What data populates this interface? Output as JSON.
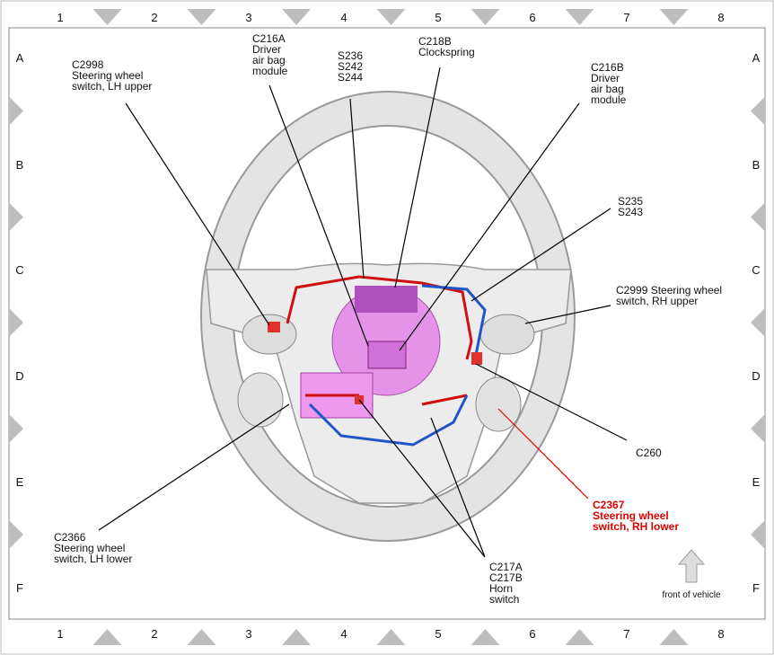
{
  "grid": {
    "columns": [
      "1",
      "2",
      "3",
      "4",
      "5",
      "6",
      "7",
      "8"
    ],
    "rows": [
      "A",
      "B",
      "C",
      "D",
      "E",
      "F"
    ]
  },
  "labels": [
    {
      "id": "c2998",
      "lines": [
        "C2998",
        "Steering wheel",
        "switch, LH upper"
      ]
    },
    {
      "id": "c216a",
      "lines": [
        "C216A",
        "Driver",
        "air bag",
        "module"
      ]
    },
    {
      "id": "s236",
      "lines": [
        "S236",
        "S242",
        "S244"
      ]
    },
    {
      "id": "c218b",
      "lines": [
        "C218B",
        "Clockspring"
      ]
    },
    {
      "id": "c216b",
      "lines": [
        "C216B",
        "Driver",
        "air bag",
        "module"
      ]
    },
    {
      "id": "s235",
      "lines": [
        "S235",
        "S243"
      ]
    },
    {
      "id": "c2999",
      "lines": [
        "C2999 Steering wheel",
        "switch, RH upper"
      ]
    },
    {
      "id": "c260",
      "lines": [
        "C260"
      ]
    },
    {
      "id": "c2367",
      "lines": [
        "C2367",
        "Steering wheel",
        "switch, RH lower"
      ]
    },
    {
      "id": "c2366",
      "lines": [
        "C2366",
        "Steering wheel",
        "switch, LH lower"
      ]
    },
    {
      "id": "c217",
      "lines": [
        "C217A",
        "C217B",
        "Horn",
        "switch"
      ]
    }
  ],
  "front_note": "front of vehicle"
}
